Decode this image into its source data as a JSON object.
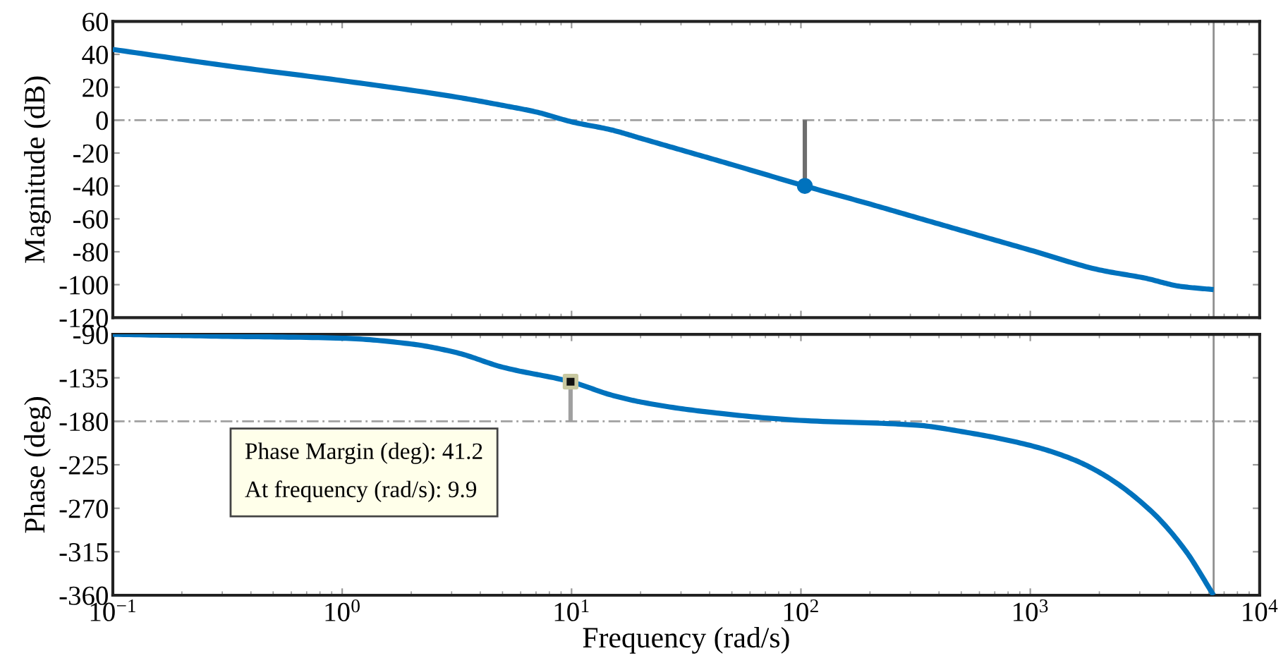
{
  "chart_data": [
    {
      "type": "line",
      "ylabel": "Magnitude (dB)",
      "log": "x",
      "tick_labels": "y",
      "xlim": [
        0.1,
        10000
      ],
      "xticks": [
        0.1,
        1,
        10,
        100,
        1000,
        10000
      ],
      "ylim": [
        -120,
        60
      ],
      "yticks": [
        -120,
        -100,
        -80,
        -60,
        -40,
        -20,
        0,
        20,
        40,
        60
      ],
      "grid": false,
      "legend": false,
      "series": [
        {
          "color": "#0072bd",
          "x": [
            0.1,
            0.316,
            1,
            3.16,
            5,
            7,
            10,
            15,
            20,
            31.6,
            50,
            104,
            200,
            316,
            500,
            1000,
            2000,
            3162,
            4500,
            6300
          ],
          "values": [
            43,
            33,
            24,
            14,
            9,
            5,
            -1,
            -6,
            -11,
            -19,
            -27,
            -40,
            -51,
            -59,
            -67,
            -79,
            -91,
            -96,
            -101,
            -103
          ]
        },
        {
          "color": "#6e6e6e",
          "x": [
            104,
            104
          ],
          "values": [
            -40,
            0
          ]
        },
        {
          "type": "scatter",
          "marker": "circle",
          "color": "#0072bd",
          "x": [
            104
          ],
          "values": [
            -40
          ]
        }
      ],
      "ref_lines": [
        {
          "axis": "y",
          "value": 0,
          "color": "#a0a0a0",
          "line_style": "dashed"
        },
        {
          "axis": "x",
          "value": 6300,
          "color": "#909090",
          "line_style": "solid"
        }
      ]
    },
    {
      "type": "line",
      "ylabel": "Phase (deg)",
      "xlabel": "Frequency (rad/s)",
      "log": "x",
      "xlim": [
        0.1,
        10000
      ],
      "xticks": [
        {
          "value": 0.1,
          "label": "10$^{−1}$"
        },
        {
          "value": 1,
          "label": "10$^{0}$"
        },
        {
          "value": 10,
          "label": "10$^{1}$"
        },
        {
          "value": 100,
          "label": "10$^{2}$"
        },
        {
          "value": 1000,
          "label": "10$^{3}$"
        },
        {
          "value": 10000,
          "label": "10$^{4}$"
        }
      ],
      "ylim": [
        -360,
        -90
      ],
      "yticks": [
        -360,
        -315,
        -270,
        -225,
        -180,
        -135,
        -90
      ],
      "grid": false,
      "legend": false,
      "series": [
        {
          "color": "#0072bd",
          "x": [
            0.1,
            0.3,
            1,
            2,
            3.16,
            5,
            9.9,
            15,
            20,
            38,
            98.5,
            321,
            513,
            1000,
            1520,
            2110,
            3400,
            4720,
            6300
          ],
          "values": [
            -90,
            -92,
            -94,
            -100,
            -109,
            -124,
            -139,
            -153,
            -160,
            -170,
            -179,
            -184,
            -191,
            -205,
            -219,
            -236,
            -274,
            -313,
            -360
          ]
        },
        {
          "color": "#a0a0a0",
          "x": [
            9.9,
            9.9
          ],
          "values": [
            -139,
            -180
          ]
        },
        {
          "type": "scatter",
          "marker": "square",
          "color": "#111111",
          "x": [
            9.9
          ],
          "values": [
            -139
          ]
        }
      ],
      "ref_lines": [
        {
          "axis": "y",
          "value": -180,
          "color": "#a0a0a0",
          "line_style": "dashed"
        },
        {
          "axis": "x",
          "value": 6300,
          "color": "#909090",
          "line_style": "solid"
        }
      ],
      "annotations": [
        "Phase Margin (deg): 41.2\nAt frequency (rad/s): 9.9"
      ]
    }
  ]
}
